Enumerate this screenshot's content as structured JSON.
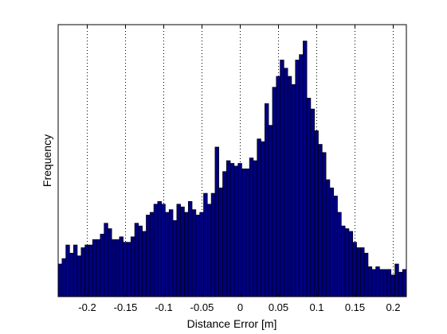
{
  "chart_data": {
    "type": "bar",
    "title": "",
    "xlabel": "Distance Error [m]",
    "ylabel": "Frequency",
    "xlim": [
      -0.2375,
      0.2175
    ],
    "ylim": [
      0,
      100
    ],
    "grid": "vertical-dotted",
    "bar_color": "#00007f",
    "edge_color": "#000000",
    "bin_width": 0.005,
    "x_ticks": [
      -0.2,
      -0.15,
      -0.1,
      -0.05,
      0,
      0.05,
      0.1,
      0.15,
      0.2
    ],
    "x_tick_labels": [
      "-0.2",
      "-0.15",
      "-0.1",
      "-0.05",
      "0",
      "0.05",
      "0.1",
      "0.15",
      "0.2"
    ],
    "y_ticks": [],
    "bin_starts": [
      -0.2375,
      -0.2325,
      -0.2275,
      -0.2225,
      -0.2175,
      -0.2125,
      -0.2075,
      -0.2025,
      -0.1975,
      -0.1925,
      -0.1875,
      -0.1825,
      -0.1775,
      -0.1725,
      -0.1675,
      -0.1625,
      -0.1575,
      -0.1525,
      -0.1475,
      -0.1425,
      -0.1375,
      -0.1325,
      -0.1275,
      -0.1225,
      -0.1175,
      -0.1125,
      -0.1075,
      -0.1025,
      -0.0975,
      -0.0925,
      -0.0875,
      -0.0825,
      -0.0775,
      -0.0725,
      -0.0675,
      -0.0625,
      -0.0575,
      -0.0525,
      -0.0475,
      -0.0425,
      -0.0375,
      -0.0325,
      -0.0275,
      -0.0225,
      -0.0175,
      -0.0125,
      -0.0075,
      -0.0025,
      0.0025,
      0.0075,
      0.0125,
      0.0175,
      0.0225,
      0.0275,
      0.0325,
      0.0375,
      0.0425,
      0.0475,
      0.0525,
      0.0575,
      0.0625,
      0.0675,
      0.0725,
      0.0775,
      0.0825,
      0.0875,
      0.0925,
      0.0975,
      0.1025,
      0.1075,
      0.1125,
      0.1175,
      0.1225,
      0.1275,
      0.1325,
      0.1375,
      0.1425,
      0.1475,
      0.1525,
      0.1575,
      0.1625,
      0.1675,
      0.1725,
      0.1775,
      0.1825,
      0.1875,
      0.1925,
      0.1975,
      0.2025,
      0.2075,
      0.2125
    ],
    "values": [
      12,
      14,
      19,
      16,
      19,
      15,
      18,
      19,
      19,
      21,
      21,
      23,
      27,
      25,
      21,
      21,
      22,
      20,
      20,
      22,
      27,
      26,
      24,
      30,
      31,
      34,
      35,
      34,
      31,
      32,
      28,
      34,
      33,
      31,
      35,
      32,
      30,
      31,
      38,
      34,
      38,
      55,
      40,
      46,
      50,
      49,
      48,
      49,
      47,
      47,
      51,
      50,
      58,
      57,
      71,
      63,
      77,
      81,
      87,
      84,
      81,
      78,
      87,
      89,
      94,
      73,
      69,
      61,
      56,
      53,
      43,
      40,
      37,
      31,
      26,
      25,
      24,
      20,
      18,
      18,
      16,
      11,
      10,
      11,
      10,
      10,
      10,
      8,
      12,
      9,
      10
    ]
  }
}
